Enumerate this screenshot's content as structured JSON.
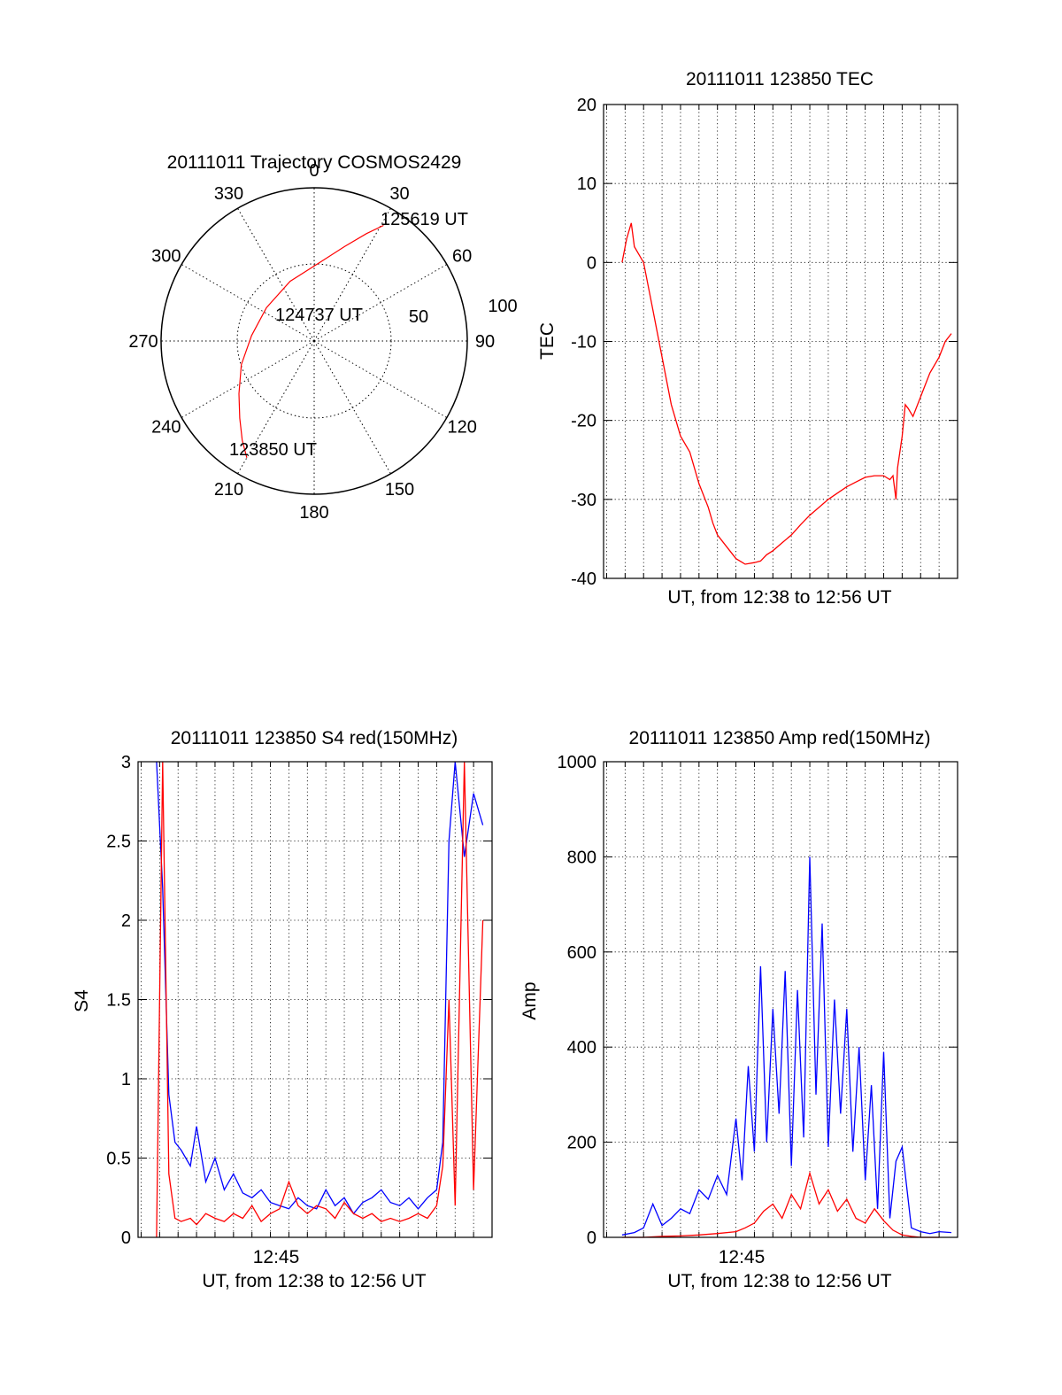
{
  "chart_data": [
    {
      "type": "polar",
      "title": "20111011 Trajectory COSMOS2429",
      "azimuth_labels": [
        "0",
        "30",
        "60",
        "90",
        "120",
        "150",
        "180",
        "210",
        "240",
        "270",
        "300",
        "330"
      ],
      "radial_labels": [
        "50",
        "100"
      ],
      "rlim": [
        0,
        100
      ],
      "series": [
        {
          "color": "#ff0000",
          "points": [
            {
              "az": 210,
              "r": 88
            },
            {
              "az": 216,
              "r": 80
            },
            {
              "az": 224,
              "r": 70
            },
            {
              "az": 235,
              "r": 60
            },
            {
              "az": 252,
              "r": 50
            },
            {
              "az": 275,
              "r": 41
            },
            {
              "az": 305,
              "r": 38
            },
            {
              "az": 338,
              "r": 42
            },
            {
              "az": 5,
              "r": 52
            },
            {
              "az": 18,
              "r": 65
            },
            {
              "az": 26,
              "r": 78
            },
            {
              "az": 31,
              "r": 88
            }
          ]
        }
      ],
      "annotations": [
        "125619 UT",
        "124737 UT",
        "123850 UT"
      ]
    },
    {
      "type": "line",
      "title": "20111011 123850 TEC",
      "xlabel": "UT, from 12:38 to 12:56 UT",
      "ylabel": "TEC",
      "xlim": [
        "12:37:50",
        "12:57:00"
      ],
      "ylim": [
        -40,
        20
      ],
      "yticks": [
        "20",
        "10",
        "0",
        "-10",
        "-20",
        "-30",
        "-40"
      ],
      "grid": true,
      "series": [
        {
          "color": "#ff0000",
          "x": [
            "12:38:50",
            "12:39:05",
            "12:39:20",
            "12:39:30",
            "12:39:45",
            "12:40:00",
            "12:40:30",
            "12:41:00",
            "12:41:30",
            "12:42:00",
            "12:42:30",
            "12:43:00",
            "12:43:30",
            "12:43:45",
            "12:44:00",
            "12:44:30",
            "12:45:00",
            "12:45:30",
            "12:46:00",
            "12:46:20",
            "12:46:40",
            "12:47:00",
            "12:47:30",
            "12:48:00",
            "12:48:30",
            "12:49:00",
            "12:49:30",
            "12:50:00",
            "12:50:30",
            "12:51:00",
            "12:51:30",
            "12:52:00",
            "12:52:30",
            "12:53:00",
            "12:53:20",
            "12:53:30",
            "12:53:40",
            "12:53:45",
            "12:54:00",
            "12:54:10",
            "12:54:20",
            "12:54:35",
            "12:55:00",
            "12:55:30",
            "12:56:00",
            "12:56:20",
            "12:56:40"
          ],
          "values": [
            0,
            3,
            5,
            2,
            1,
            0,
            -6,
            -12,
            -18,
            -22,
            -24,
            -28,
            -31,
            -33,
            -34.5,
            -36,
            -37.5,
            -38.2,
            -38,
            -37.8,
            -37,
            -36.5,
            -35.5,
            -34.5,
            -33.2,
            -32,
            -31,
            -30,
            -29.2,
            -28.4,
            -27.8,
            -27.2,
            -27,
            -27,
            -27.5,
            -27,
            -30,
            -26,
            -22,
            -18,
            -18.5,
            -19.5,
            -17,
            -14,
            -12,
            -10,
            -9
          ]
        }
      ]
    },
    {
      "type": "line",
      "title": "20111011 123850 S4 red(150MHz)",
      "xlabel": "UT, from 12:38 to 12:56 UT",
      "ylabel": "S4",
      "xlim": [
        "12:37:50",
        "12:57:00"
      ],
      "ylim": [
        0,
        3
      ],
      "xticks": [
        "12:45"
      ],
      "yticks": [
        "3",
        "2.5",
        "2",
        "1.5",
        "1",
        "0.5",
        "0"
      ],
      "grid": true,
      "series": [
        {
          "color": "#0000ff",
          "x": [
            "12:38:50",
            "12:39:10",
            "12:39:30",
            "12:39:50",
            "12:40:10",
            "12:40:40",
            "12:41:00",
            "12:41:30",
            "12:42:00",
            "12:42:30",
            "12:43:00",
            "12:43:30",
            "12:44:00",
            "12:44:30",
            "12:45:00",
            "12:45:30",
            "12:46:00",
            "12:46:30",
            "12:47:00",
            "12:47:30",
            "12:48:00",
            "12:48:30",
            "12:49:00",
            "12:49:30",
            "12:50:00",
            "12:50:30",
            "12:51:00",
            "12:51:30",
            "12:52:00",
            "12:52:30",
            "12:53:00",
            "12:53:30",
            "12:54:00",
            "12:54:20",
            "12:54:40",
            "12:55:00",
            "12:55:30",
            "12:56:00",
            "12:56:30"
          ],
          "values": [
            3,
            2.2,
            0.9,
            0.6,
            0.55,
            0.45,
            0.7,
            0.35,
            0.5,
            0.3,
            0.4,
            0.28,
            0.25,
            0.3,
            0.22,
            0.2,
            0.18,
            0.25,
            0.2,
            0.18,
            0.3,
            0.2,
            0.25,
            0.15,
            0.22,
            0.25,
            0.3,
            0.22,
            0.2,
            0.25,
            0.18,
            0.25,
            0.3,
            0.6,
            2.5,
            3,
            2.4,
            2.8,
            2.6
          ]
        },
        {
          "color": "#ff0000",
          "x": [
            "12:38:50",
            "12:39:10",
            "12:39:30",
            "12:39:50",
            "12:40:10",
            "12:40:40",
            "12:41:00",
            "12:41:30",
            "12:42:00",
            "12:42:30",
            "12:43:00",
            "12:43:30",
            "12:44:00",
            "12:44:30",
            "12:45:00",
            "12:45:30",
            "12:46:00",
            "12:46:30",
            "12:47:00",
            "12:47:30",
            "12:48:00",
            "12:48:30",
            "12:49:00",
            "12:49:30",
            "12:50:00",
            "12:50:30",
            "12:51:00",
            "12:51:30",
            "12:52:00",
            "12:52:30",
            "12:53:00",
            "12:53:30",
            "12:54:00",
            "12:54:20",
            "12:54:40",
            "12:55:00",
            "12:55:30",
            "12:56:00",
            "12:56:30"
          ],
          "values": [
            0,
            3,
            0.4,
            0.12,
            0.1,
            0.12,
            0.08,
            0.15,
            0.12,
            0.1,
            0.15,
            0.12,
            0.2,
            0.1,
            0.15,
            0.18,
            0.35,
            0.2,
            0.15,
            0.2,
            0.18,
            0.12,
            0.22,
            0.15,
            0.12,
            0.15,
            0.1,
            0.12,
            0.1,
            0.12,
            0.15,
            0.12,
            0.2,
            0.45,
            1.5,
            0.2,
            3,
            0.3,
            2
          ]
        }
      ]
    },
    {
      "type": "line",
      "title": "20111011 123850 Amp red(150MHz)",
      "xlabel": "UT, from 12:38 to 12:56 UT",
      "ylabel": "Amp",
      "xlim": [
        "12:37:50",
        "12:57:00"
      ],
      "ylim": [
        0,
        1000
      ],
      "xticks": [
        "12:45"
      ],
      "yticks": [
        "1000",
        "800",
        "600",
        "400",
        "200",
        "0"
      ],
      "grid": true,
      "series": [
        {
          "color": "#0000ff",
          "x": [
            "12:38:50",
            "12:39:30",
            "12:40:00",
            "12:40:30",
            "12:41:00",
            "12:41:30",
            "12:42:00",
            "12:42:30",
            "12:43:00",
            "12:43:30",
            "12:44:00",
            "12:44:30",
            "12:45:00",
            "12:45:20",
            "12:45:40",
            "12:46:00",
            "12:46:20",
            "12:46:40",
            "12:47:00",
            "12:47:20",
            "12:47:40",
            "12:48:00",
            "12:48:20",
            "12:48:40",
            "12:49:00",
            "12:49:20",
            "12:49:40",
            "12:50:00",
            "12:50:20",
            "12:50:40",
            "12:51:00",
            "12:51:20",
            "12:51:40",
            "12:52:00",
            "12:52:20",
            "12:52:40",
            "12:53:00",
            "12:53:20",
            "12:53:40",
            "12:54:00",
            "12:54:30",
            "12:55:00",
            "12:55:30",
            "12:56:00",
            "12:56:40"
          ],
          "values": [
            5,
            10,
            20,
            70,
            25,
            40,
            60,
            50,
            100,
            80,
            130,
            90,
            250,
            120,
            360,
            180,
            570,
            200,
            480,
            260,
            560,
            150,
            520,
            210,
            800,
            300,
            660,
            190,
            500,
            260,
            480,
            180,
            400,
            120,
            320,
            60,
            390,
            40,
            160,
            190,
            20,
            12,
            8,
            12,
            10
          ]
        },
        {
          "color": "#ff0000",
          "x": [
            "12:38:50",
            "12:40:00",
            "12:41:00",
            "12:42:00",
            "12:43:00",
            "12:44:00",
            "12:45:00",
            "12:45:30",
            "12:46:00",
            "12:46:30",
            "12:47:00",
            "12:47:30",
            "12:48:00",
            "12:48:30",
            "12:49:00",
            "12:49:30",
            "12:50:00",
            "12:50:30",
            "12:51:00",
            "12:51:30",
            "12:52:00",
            "12:52:30",
            "12:53:00",
            "12:53:30",
            "12:54:00",
            "12:54:30",
            "12:55:00",
            "12:56:00"
          ],
          "values": [
            0,
            0,
            2,
            3,
            5,
            8,
            12,
            20,
            30,
            55,
            70,
            40,
            90,
            60,
            135,
            70,
            100,
            55,
            80,
            40,
            30,
            60,
            35,
            15,
            5,
            2,
            0,
            0
          ]
        }
      ]
    }
  ]
}
